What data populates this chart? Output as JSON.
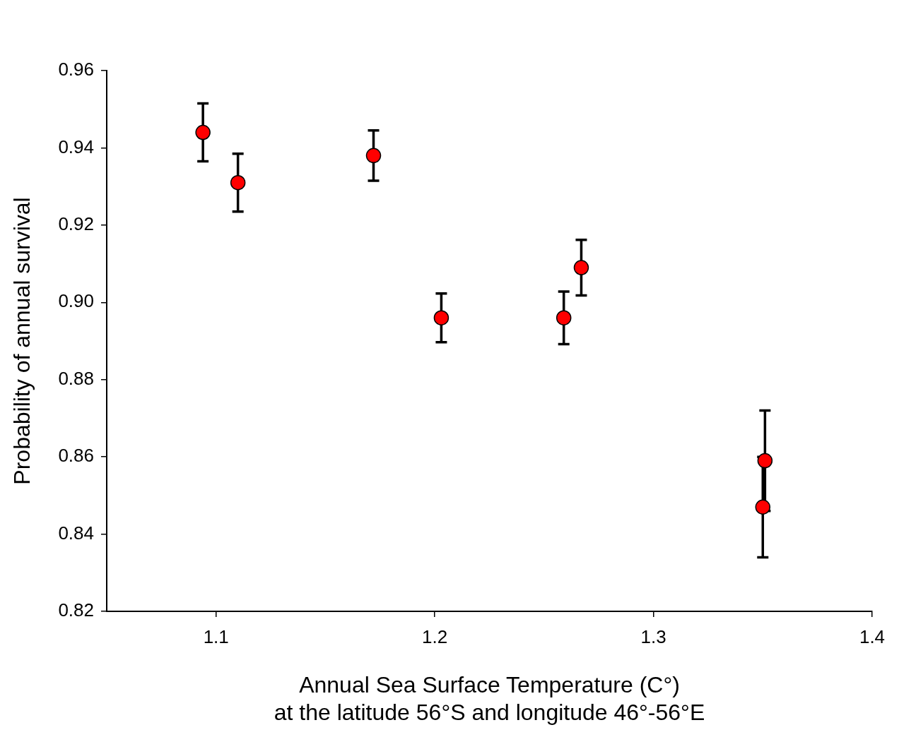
{
  "chart_data": {
    "type": "scatter",
    "xlabel": "Annual Sea Surface Temperature (C°)\nat the latitude 56°S and longitude 46°-56°E",
    "ylabel": "Probability of annual survival",
    "x": [
      1.094,
      1.11,
      1.172,
      1.203,
      1.259,
      1.267,
      1.351,
      1.35
    ],
    "values": [
      0.944,
      0.931,
      0.938,
      0.896,
      0.896,
      0.909,
      0.859,
      0.847
    ],
    "errors": [
      0.0075,
      0.0075,
      0.0065,
      0.0063,
      0.0068,
      0.0072,
      0.013,
      0.013
    ],
    "color": "#ff0000",
    "marker": "circle",
    "grid": false,
    "legend": false,
    "xlim": [
      1.05,
      1.4
    ],
    "xticks": [
      1.1,
      1.2,
      1.3,
      1.4
    ],
    "ylim": [
      0.82,
      0.96
    ],
    "yticks": [
      0.82,
      0.84,
      0.86,
      0.88,
      {
        "value": 0.9,
        "label": "0.90"
      },
      0.92,
      0.94,
      0.96
    ]
  }
}
